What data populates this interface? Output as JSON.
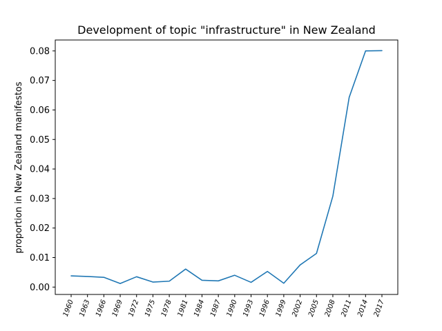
{
  "chart_data": {
    "type": "line",
    "title": "Development of topic \"infrastructure\" in New Zealand",
    "xlabel": "",
    "ylabel": "proportion in New Zealand manifestos",
    "categories": [
      "1960",
      "1963",
      "1966",
      "1969",
      "1972",
      "1975",
      "1978",
      "1981",
      "1984",
      "1987",
      "1990",
      "1993",
      "1996",
      "1999",
      "2002",
      "2005",
      "2008",
      "2011",
      "2014",
      "2017"
    ],
    "series": [
      {
        "values": [
          0.0038,
          0.0036,
          0.0033,
          0.0012,
          0.0035,
          0.0017,
          0.002,
          0.0061,
          0.0023,
          0.0021,
          0.004,
          0.0016,
          0.0053,
          0.0013,
          0.0075,
          0.0114,
          0.0308,
          0.0643,
          0.08,
          0.0801
        ],
        "color": "#1f77b4"
      }
    ],
    "ylim": [
      -0.0025,
      0.0837
    ],
    "yticks": [
      "0.00",
      "0.01",
      "0.02",
      "0.03",
      "0.04",
      "0.05",
      "0.06",
      "0.07",
      "0.08"
    ],
    "grid": false
  }
}
